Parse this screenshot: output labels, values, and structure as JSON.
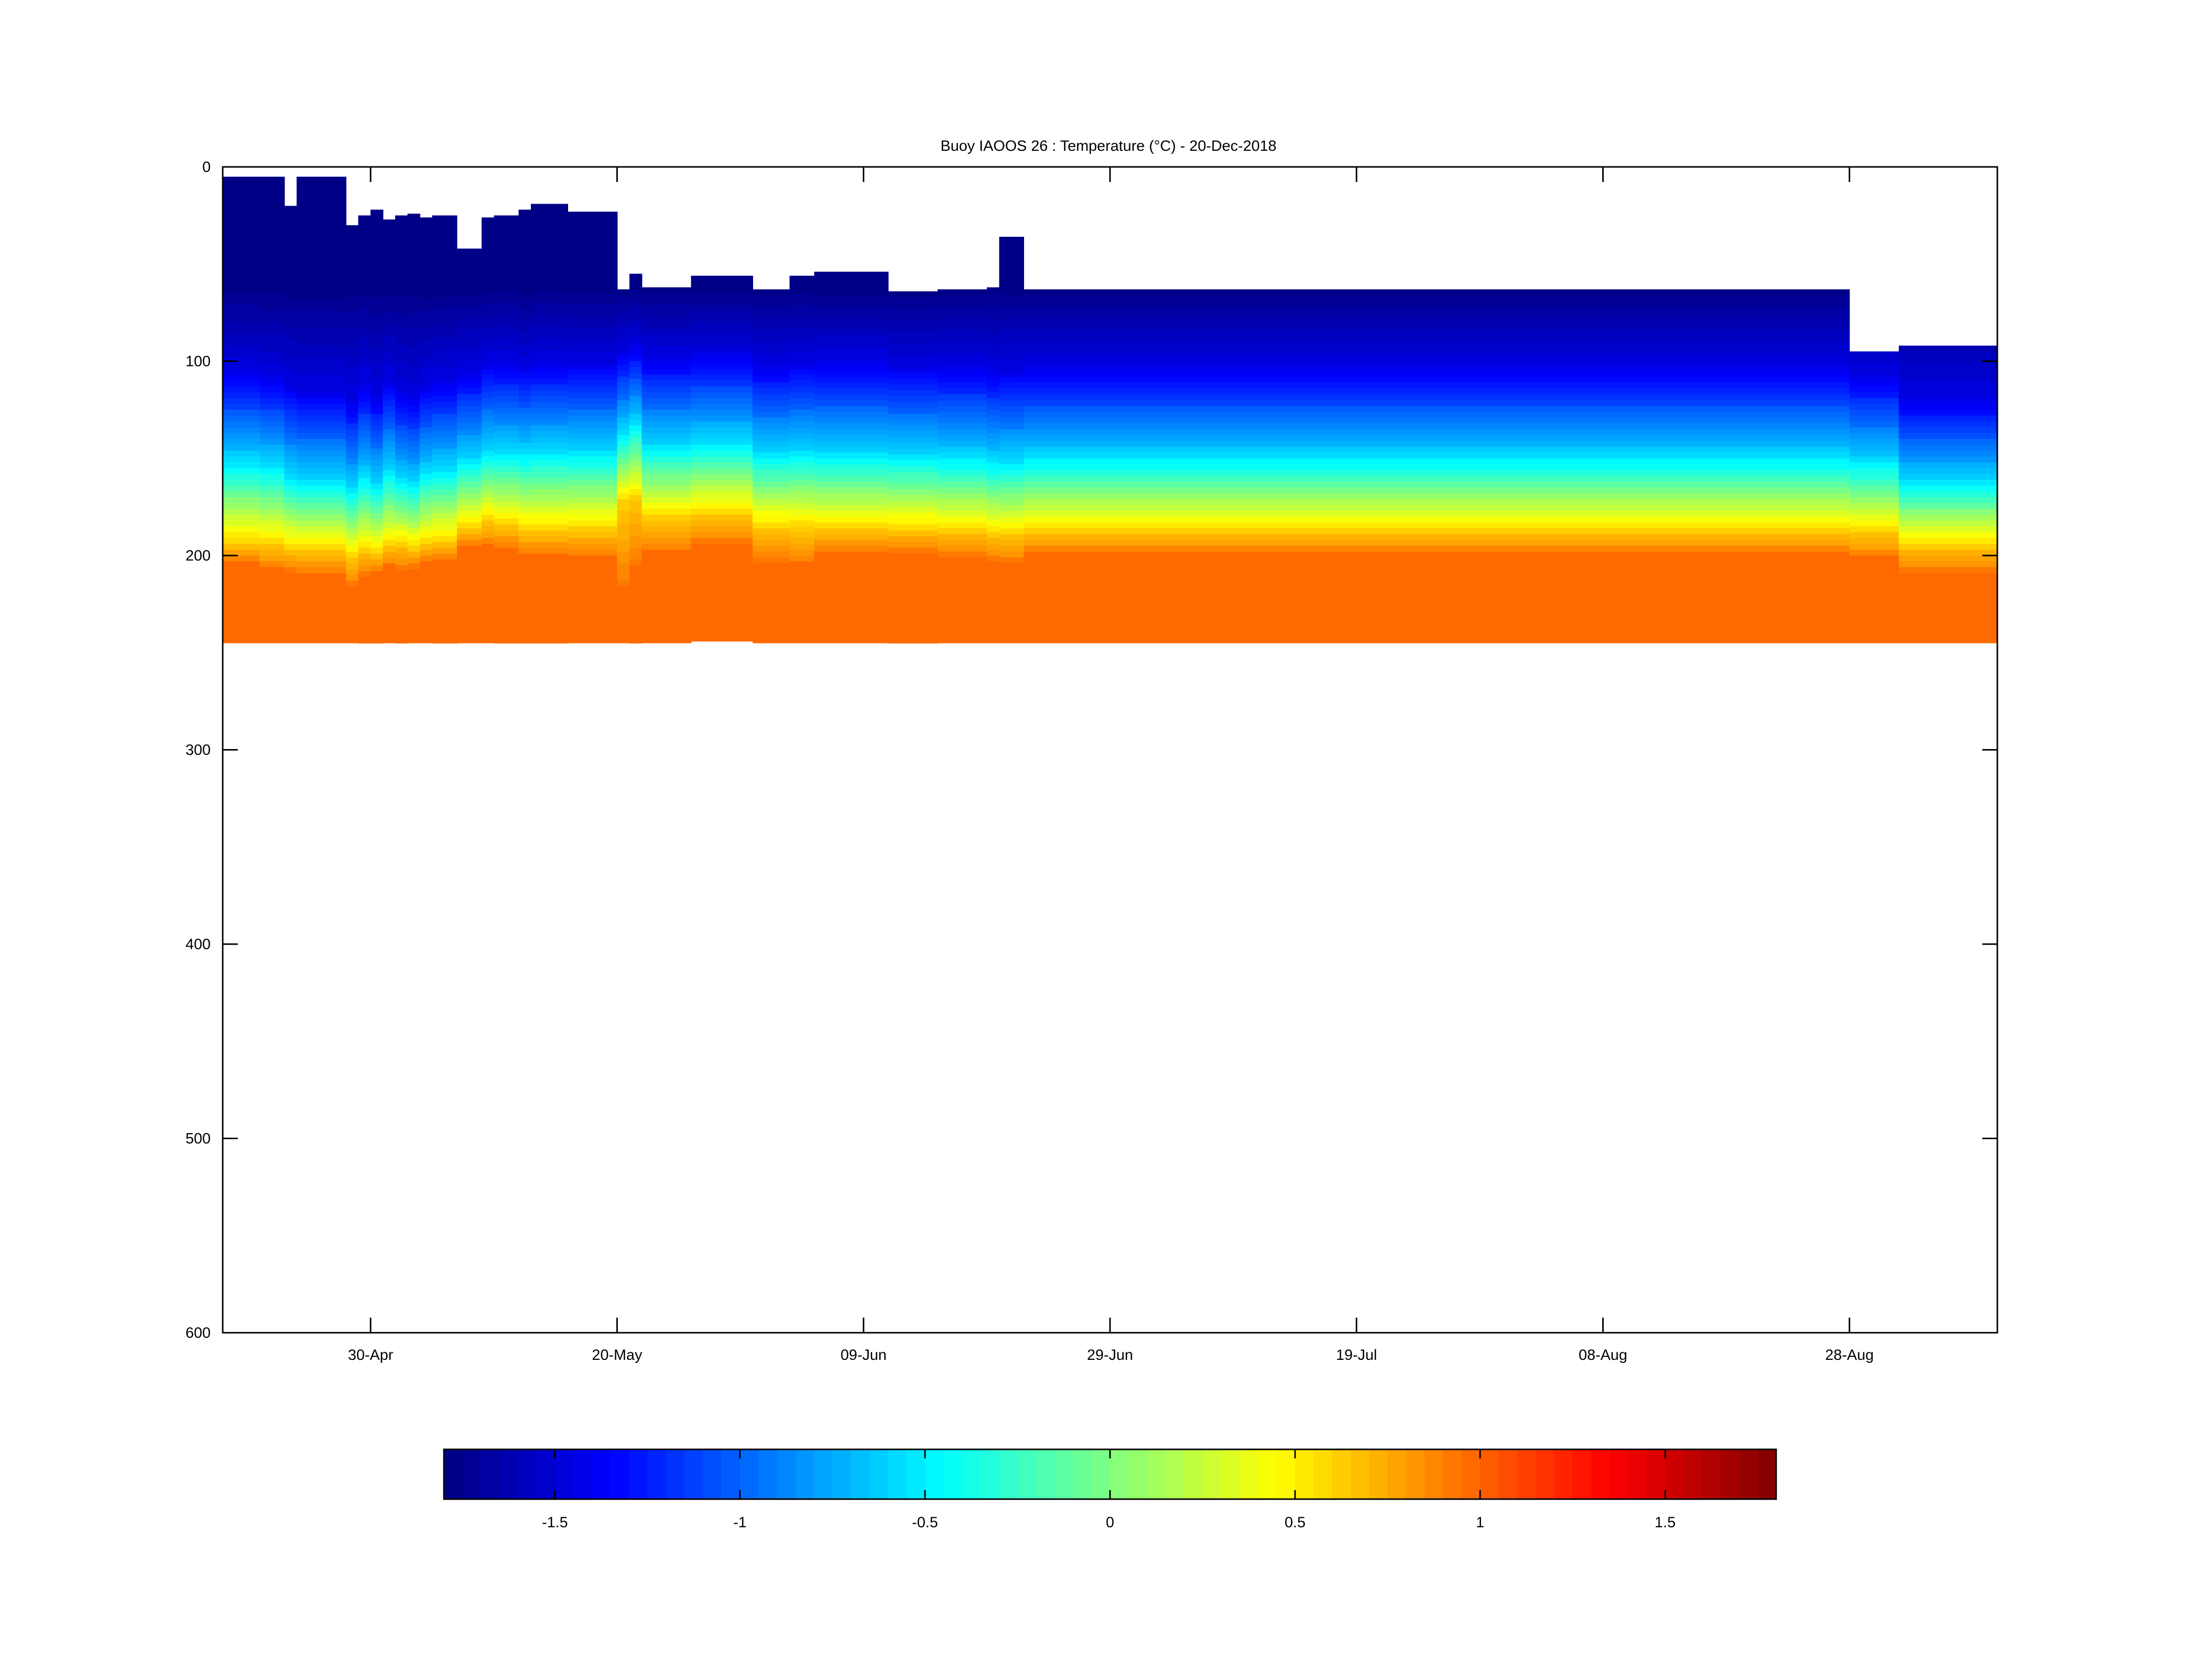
{
  "chart_data": {
    "type": "heatmap",
    "title": "Buoy IAOOS 26 : Temperature (°C) - 20-Dec-2018",
    "xlabel": "",
    "ylabel": "",
    "x_range": [
      "2019-04-18",
      "2019-09-09"
    ],
    "x_ticks": [
      {
        "date": "2019-04-30",
        "label": "30-Apr"
      },
      {
        "date": "2019-05-20",
        "label": "20-May"
      },
      {
        "date": "2019-06-09",
        "label": "09-Jun"
      },
      {
        "date": "2019-06-29",
        "label": "29-Jun"
      },
      {
        "date": "2019-07-19",
        "label": "19-Jul"
      },
      {
        "date": "2019-08-08",
        "label": "08-Aug"
      },
      {
        "date": "2019-08-28",
        "label": "28-Aug"
      }
    ],
    "y_range": [
      0,
      600
    ],
    "y_reversed": true,
    "y_ticks": [
      0,
      100,
      200,
      300,
      400,
      500,
      600
    ],
    "grid": false,
    "colorbar": {
      "position": "bottom",
      "range": [
        -1.8,
        1.8
      ],
      "ticks": [
        -1.5,
        -1,
        -0.5,
        0,
        0.5,
        1,
        1.5
      ],
      "tick_labels": [
        "-1.5",
        "-1",
        "-0.5",
        "0",
        "0.5",
        "1",
        "1.5"
      ],
      "colormap": "jet",
      "levels": 72
    },
    "profiles": [
      {
        "start": "2019-04-18",
        "end": "2019-04-21",
        "top": 5,
        "bottom": 245,
        "t0": 62,
        "t1": 105,
        "t2": 150,
        "t3": 193,
        "t4": 203
      },
      {
        "start": "2019-04-21",
        "end": "2019-04-21",
        "top": 20,
        "bottom": 245,
        "t0": 62,
        "t1": 110,
        "t2": 155,
        "t3": 195,
        "t4": 205
      },
      {
        "start": "2019-04-21",
        "end": "2019-04-23",
        "top": 5,
        "bottom": 245,
        "t0": 62,
        "t1": 108,
        "t2": 152,
        "t3": 194,
        "t4": 207
      },
      {
        "start": "2019-04-23",
        "end": "2019-04-24",
        "top": 20,
        "bottom": 245,
        "t0": 62,
        "t1": 112,
        "t2": 158,
        "t3": 196,
        "t4": 208
      },
      {
        "start": "2019-04-24",
        "end": "2019-04-24",
        "top": 12,
        "bottom": 245,
        "t0": 62,
        "t1": 108,
        "t2": 155,
        "t3": 194,
        "t4": 205
      },
      {
        "start": "2019-04-24",
        "end": "2019-04-28",
        "top": 5,
        "bottom": 245,
        "t0": 62,
        "t1": 115,
        "t2": 160,
        "t3": 196,
        "t4": 210
      },
      {
        "start": "2019-04-28",
        "end": "2019-04-29",
        "top": 30,
        "bottom": 245,
        "t0": 62,
        "t1": 120,
        "t2": 165,
        "t3": 200,
        "t4": 215
      },
      {
        "start": "2019-04-29",
        "end": "2019-04-30",
        "top": 25,
        "bottom": 245,
        "t0": 62,
        "t1": 112,
        "t2": 158,
        "t3": 197,
        "t4": 210
      },
      {
        "start": "2019-04-30",
        "end": "2019-05-01",
        "top": 22,
        "bottom": 245,
        "t0": 62,
        "t1": 118,
        "t2": 162,
        "t3": 198,
        "t4": 208
      },
      {
        "start": "2019-05-01",
        "end": "2019-05-02",
        "top": 27,
        "bottom": 245,
        "t0": 62,
        "t1": 110,
        "t2": 155,
        "t3": 195,
        "t4": 205
      },
      {
        "start": "2019-05-02",
        "end": "2019-05-03",
        "top": 25,
        "bottom": 245,
        "t0": 62,
        "t1": 116,
        "t2": 160,
        "t3": 194,
        "t4": 207
      },
      {
        "start": "2019-05-03",
        "end": "2019-05-03",
        "top": 32,
        "bottom": 245,
        "t0": 62,
        "t1": 112,
        "t2": 156,
        "t3": 193,
        "t4": 205
      },
      {
        "start": "2019-05-03",
        "end": "2019-05-04",
        "top": 24,
        "bottom": 245,
        "t0": 62,
        "t1": 118,
        "t2": 162,
        "t3": 196,
        "t4": 206
      },
      {
        "start": "2019-05-04",
        "end": "2019-05-05",
        "top": 26,
        "bottom": 245,
        "t0": 62,
        "t1": 112,
        "t2": 156,
        "t3": 193,
        "t4": 204
      },
      {
        "start": "2019-05-05",
        "end": "2019-05-07",
        "top": 25,
        "bottom": 245,
        "t0": 62,
        "t1": 110,
        "t2": 154,
        "t3": 192,
        "t4": 202
      },
      {
        "start": "2019-05-07",
        "end": "2019-05-09",
        "top": 42,
        "bottom": 245,
        "t0": 62,
        "t1": 105,
        "t2": 150,
        "t3": 185,
        "t4": 195
      },
      {
        "start": "2019-05-09",
        "end": "2019-05-10",
        "top": 26,
        "bottom": 245,
        "t0": 62,
        "t1": 100,
        "t2": 145,
        "t3": 182,
        "t4": 195
      },
      {
        "start": "2019-05-10",
        "end": "2019-05-12",
        "top": 25,
        "bottom": 245,
        "t0": 62,
        "t1": 100,
        "t2": 145,
        "t3": 184,
        "t4": 196
      },
      {
        "start": "2019-05-12",
        "end": "2019-05-13",
        "top": 22,
        "bottom": 245,
        "t0": 62,
        "t1": 102,
        "t2": 146,
        "t3": 186,
        "t4": 200
      },
      {
        "start": "2019-05-13",
        "end": "2019-05-16",
        "top": 19,
        "bottom": 245,
        "t0": 62,
        "t1": 100,
        "t2": 145,
        "t3": 186,
        "t4": 200
      },
      {
        "start": "2019-05-16",
        "end": "2019-05-20",
        "top": 23,
        "bottom": 245,
        "t0": 62,
        "t1": 100,
        "t2": 145,
        "t3": 186,
        "t4": 200
      },
      {
        "start": "2019-05-20",
        "end": "2019-05-21",
        "top": 63,
        "bottom": 245,
        "t0": 62,
        "t1": 95,
        "t2": 135,
        "t3": 172,
        "t4": 215
      },
      {
        "start": "2019-05-21",
        "end": "2019-05-22",
        "top": 55,
        "bottom": 245,
        "t0": 62,
        "t1": 92,
        "t2": 130,
        "t3": 170,
        "t4": 205
      },
      {
        "start": "2019-05-22",
        "end": "2019-05-26",
        "top": 62,
        "bottom": 245,
        "t0": 62,
        "t1": 98,
        "t2": 142,
        "t3": 180,
        "t4": 198
      },
      {
        "start": "2019-05-26",
        "end": "2019-05-26",
        "top": 58,
        "bottom": 244,
        "t0": 62,
        "t1": 96,
        "t2": 140,
        "t3": 178,
        "t4": 195
      },
      {
        "start": "2019-05-26",
        "end": "2019-05-31",
        "top": 56,
        "bottom": 244,
        "t0": 62,
        "t1": 96,
        "t2": 140,
        "t3": 178,
        "t4": 193
      },
      {
        "start": "2019-05-31",
        "end": "2019-06-03",
        "top": 63,
        "bottom": 245,
        "t0": 62,
        "t1": 102,
        "t2": 146,
        "t3": 185,
        "t4": 203
      },
      {
        "start": "2019-06-03",
        "end": "2019-06-05",
        "top": 56,
        "bottom": 245,
        "t0": 62,
        "t1": 100,
        "t2": 145,
        "t3": 185,
        "t4": 203
      },
      {
        "start": "2019-06-05",
        "end": "2019-06-11",
        "top": 54,
        "bottom": 245,
        "t0": 62,
        "t1": 100,
        "t2": 146,
        "t3": 186,
        "t4": 198
      },
      {
        "start": "2019-06-11",
        "end": "2019-06-15",
        "top": 64,
        "bottom": 245,
        "t0": 62,
        "t1": 102,
        "t2": 147,
        "t3": 186,
        "t4": 198
      },
      {
        "start": "2019-06-15",
        "end": "2019-06-19",
        "top": 63,
        "bottom": 245,
        "t0": 62,
        "t1": 102,
        "t2": 148,
        "t3": 187,
        "t4": 200
      },
      {
        "start": "2019-06-19",
        "end": "2019-06-20",
        "top": 62,
        "bottom": 245,
        "t0": 62,
        "t1": 104,
        "t2": 150,
        "t3": 189,
        "t4": 202
      },
      {
        "start": "2019-06-20",
        "end": "2019-06-22",
        "top": 36,
        "bottom": 245,
        "t0": 62,
        "t1": 104,
        "t2": 150,
        "t3": 189,
        "t4": 203
      },
      {
        "start": "2019-06-22",
        "end": "2019-08-28",
        "top": 63,
        "bottom": 245,
        "t0": 62,
        "t1": 103,
        "t2": 148,
        "t3": 187,
        "t4": 199
      },
      {
        "start": "2019-08-28",
        "end": "2019-09-01",
        "top": 95,
        "bottom": 245,
        "t0": 62,
        "t1": 108,
        "t2": 150,
        "t3": 188,
        "t4": 201
      },
      {
        "start": "2019-09-01",
        "end": "2019-09-09",
        "top": 92,
        "bottom": 245,
        "t0": 62,
        "t1": 120,
        "t2": 160,
        "t3": 195,
        "t4": 208
      }
    ]
  }
}
